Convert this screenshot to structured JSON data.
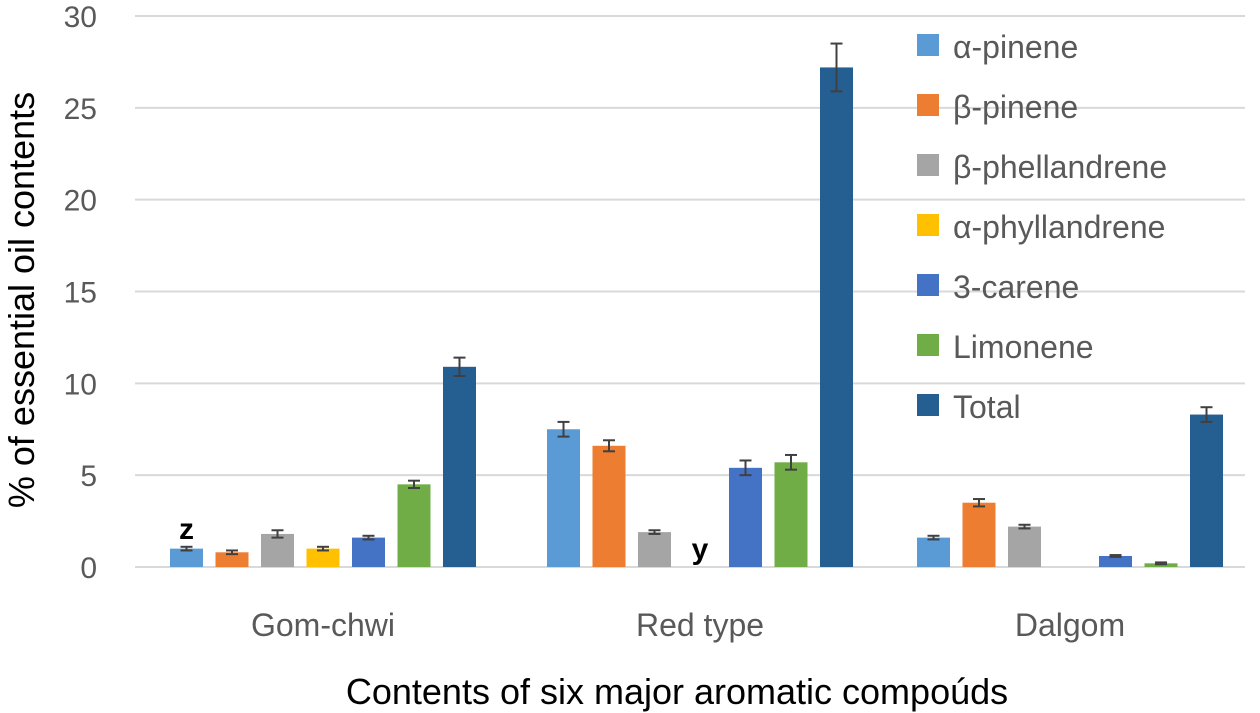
{
  "chart_data": {
    "type": "bar",
    "title": "",
    "xlabel": "Contents of six major aromatic compoúds",
    "ylabel": "% of essential oil contents",
    "ylim": [
      0,
      30
    ],
    "yticks": [
      "0",
      "5",
      "10",
      "15",
      "20",
      "25",
      "30"
    ],
    "grid": true,
    "legend_position": "right",
    "categories": [
      "Gom-chwi",
      "Red type",
      "Dalgom"
    ],
    "series": [
      {
        "name": "α-pinene",
        "color": "#5b9bd5",
        "values": [
          1.0,
          7.5,
          1.6
        ],
        "errors": [
          0.1,
          0.4,
          0.1
        ]
      },
      {
        "name": "β-pinene",
        "color": "#ed7d31",
        "values": [
          0.8,
          6.6,
          3.5
        ],
        "errors": [
          0.1,
          0.3,
          0.2
        ]
      },
      {
        "name": "β-phellandrene",
        "color": "#a5a5a5",
        "values": [
          1.8,
          1.9,
          2.2
        ],
        "errors": [
          0.2,
          0.1,
          0.1
        ]
      },
      {
        "name": "α-phyllandrene",
        "color": "#ffc000",
        "values": [
          1.0,
          0.0,
          0.0
        ],
        "errors": [
          0.1,
          0.0,
          0.0
        ]
      },
      {
        "name": "3-carene",
        "color": "#4472c4",
        "values": [
          1.6,
          5.4,
          0.6
        ],
        "errors": [
          0.1,
          0.4,
          0.05
        ]
      },
      {
        "name": "Limonene",
        "color": "#70ad47",
        "values": [
          4.5,
          5.7,
          0.2
        ],
        "errors": [
          0.2,
          0.4,
          0.05
        ]
      },
      {
        "name": "Total",
        "color": "#255e91",
        "values": [
          10.9,
          27.2,
          8.3
        ],
        "errors": [
          0.5,
          1.3,
          0.4
        ]
      }
    ],
    "annotations": [
      {
        "text": "z",
        "category": "Gom-chwi",
        "series": "α-pinene"
      },
      {
        "text": "y",
        "category": "Red type",
        "series": "α-phyllandrene"
      }
    ]
  }
}
